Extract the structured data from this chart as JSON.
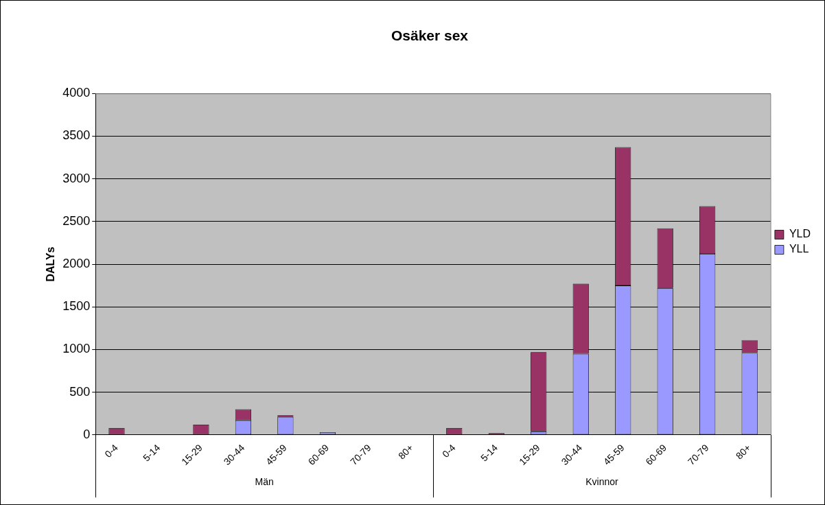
{
  "chart_data": {
    "type": "bar",
    "stacked": true,
    "title": "Osäker sex",
    "ylabel": "DALYs",
    "categories": [
      "0-4",
      "5-14",
      "15-29",
      "30-44",
      "45-59",
      "60-69",
      "70-79",
      "80+",
      "0-4",
      "5-14",
      "15-29",
      "30-44",
      "45-59",
      "60-69",
      "70-79",
      "80+"
    ],
    "series": [
      {
        "name": "YLL",
        "color": "#9999ff",
        "values": [
          0,
          0,
          0,
          170,
          210,
          30,
          0,
          0,
          0,
          0,
          40,
          950,
          1750,
          1720,
          2120,
          960
        ]
      },
      {
        "name": "YLD",
        "color": "#993366",
        "values": [
          80,
          0,
          120,
          130,
          20,
          0,
          0,
          0,
          80,
          20,
          930,
          820,
          1620,
          700,
          560,
          150
        ]
      }
    ],
    "annotations": [
      "Män",
      "Kvinnor"
    ],
    "ylim": [
      0,
      4000
    ],
    "yticks": [
      0,
      500,
      1000,
      1500,
      2000,
      2500,
      3000,
      3500,
      4000
    ],
    "grid": "y",
    "legend": "right"
  }
}
